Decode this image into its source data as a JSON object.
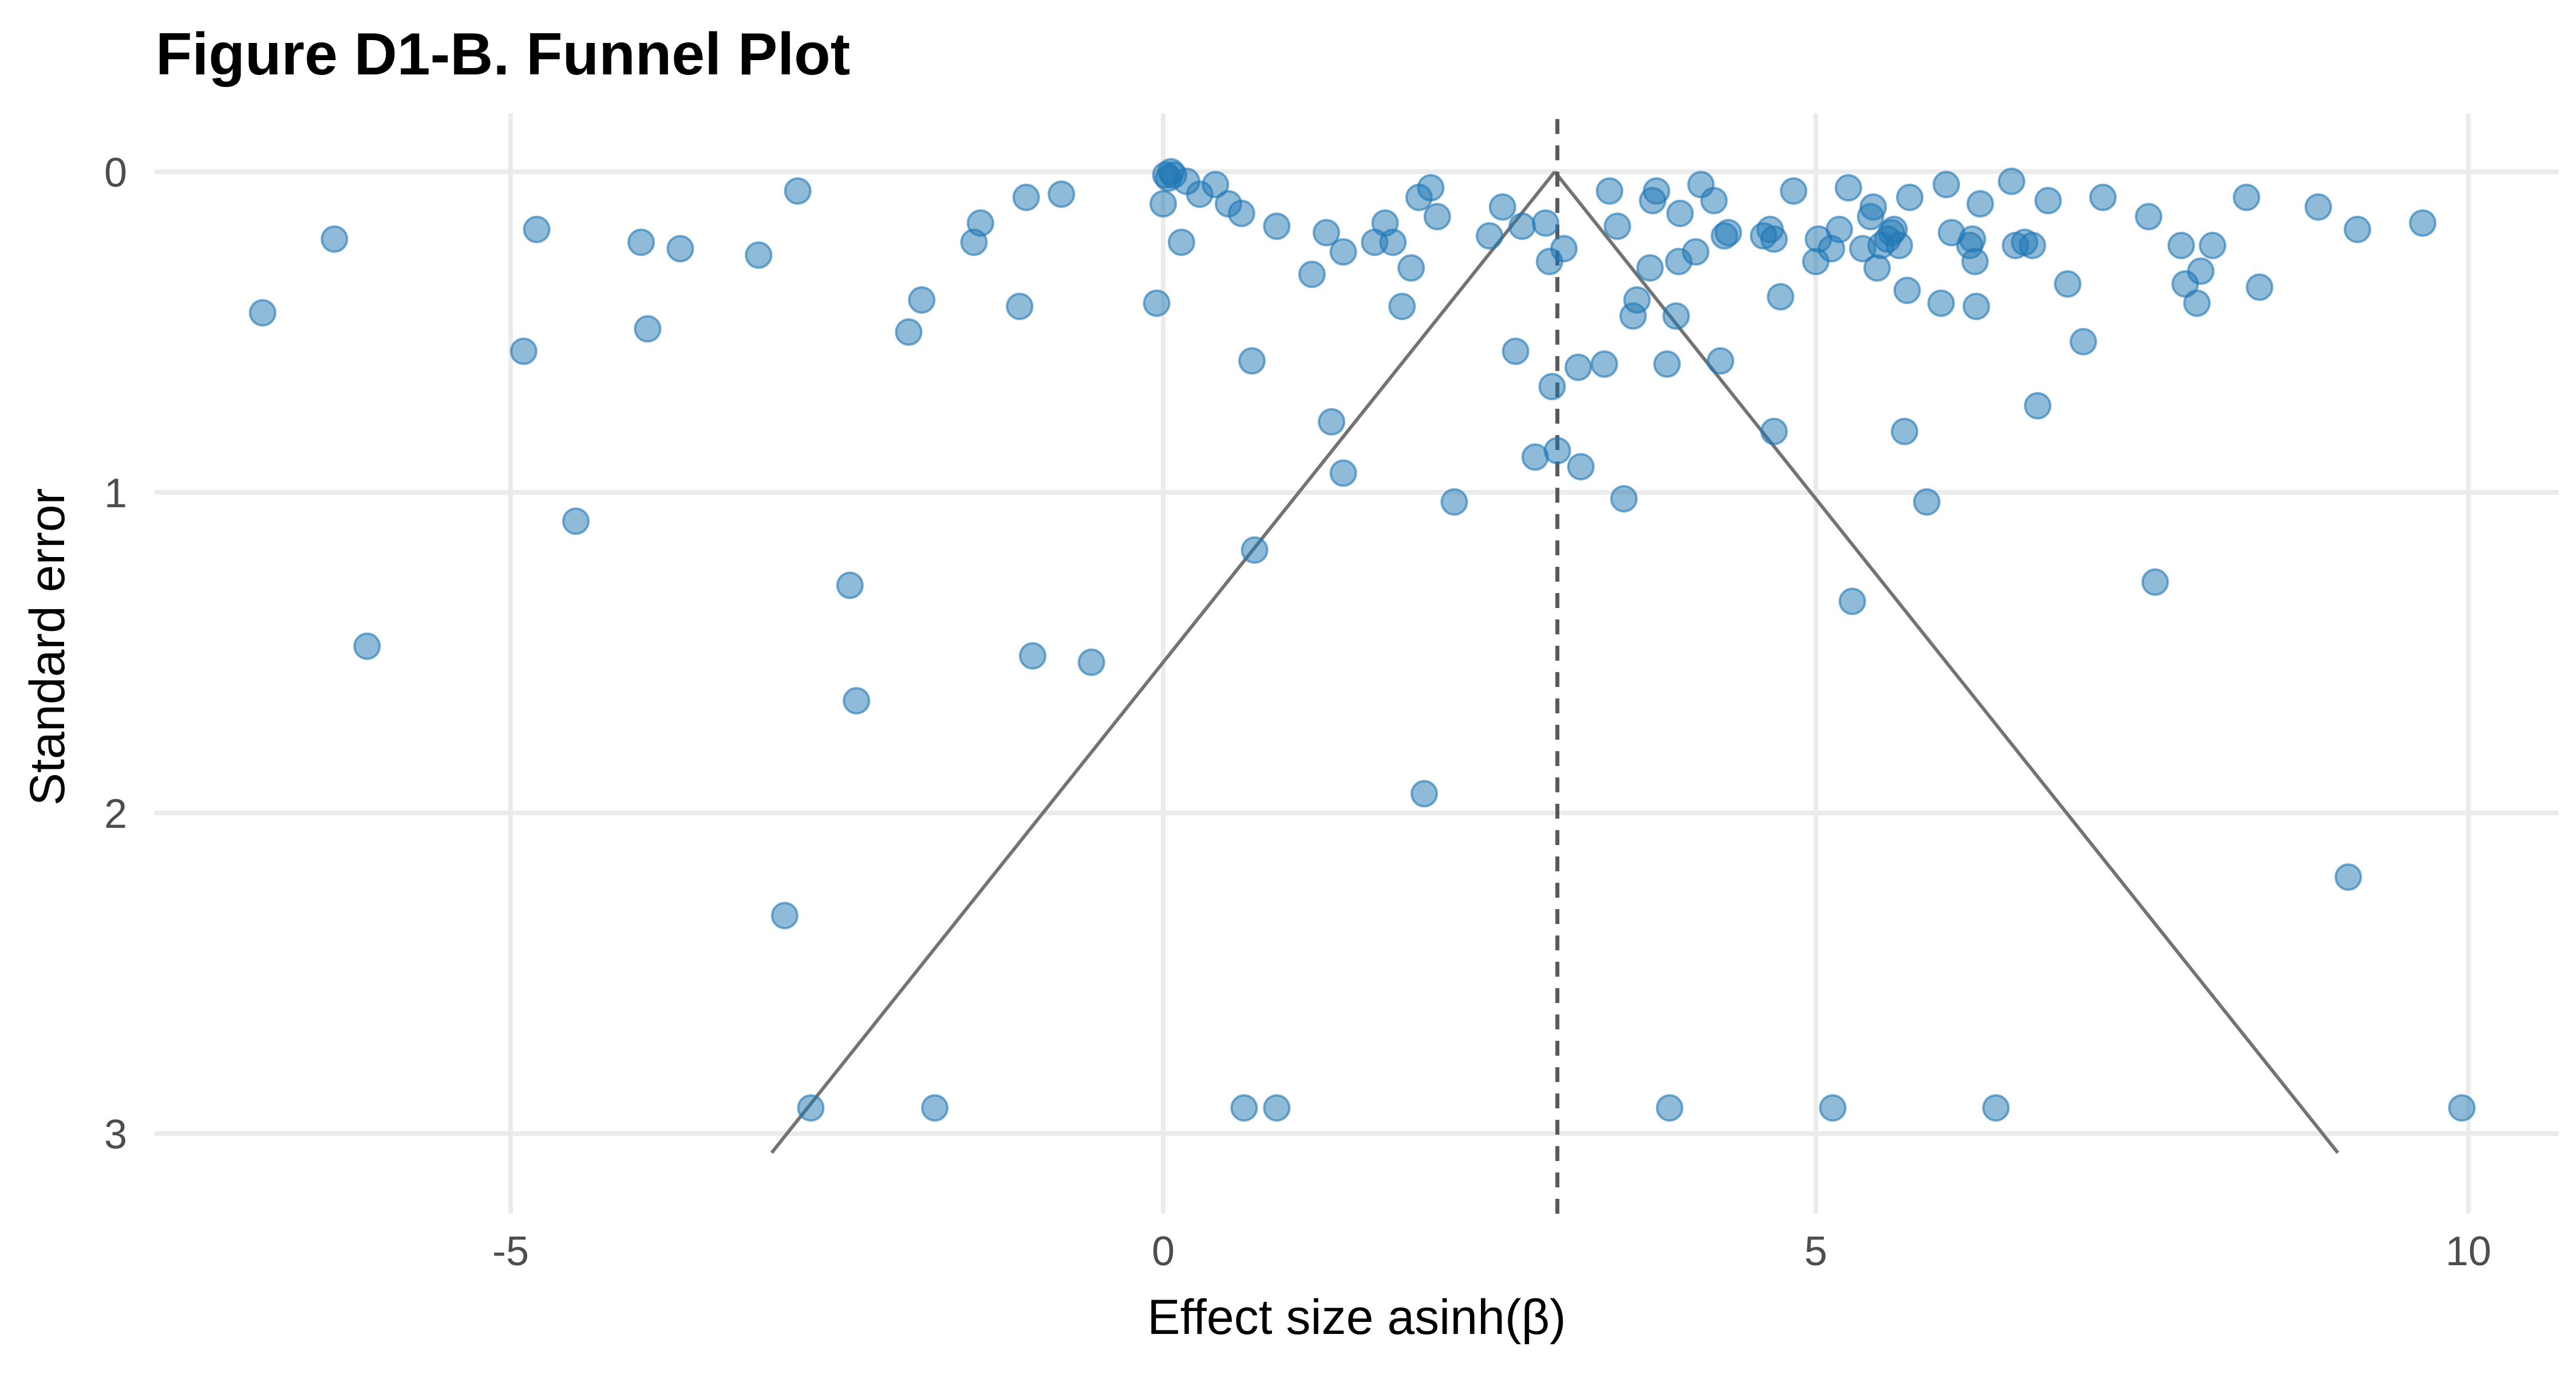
{
  "chart_data": {
    "type": "scatter",
    "title": "Figure D1-B. Funnel Plot",
    "xlabel": "Effect size asinh(β)",
    "ylabel": "Standard error",
    "xlim": [
      -7.5,
      10.5
    ],
    "ylim": [
      3.2,
      -0.1
    ],
    "y_reversed": true,
    "grid": true,
    "x_ticks": [
      -5,
      0,
      5,
      10
    ],
    "x_tick_labels": [
      "-5",
      "0",
      "5",
      "10"
    ],
    "y_ticks": [
      0,
      1,
      2,
      3
    ],
    "y_tick_labels": [
      "0",
      "1",
      "2",
      "3"
    ],
    "point_color": "#1f77b4",
    "line_color": "#737373",
    "mean_effect": 3.02,
    "funnel": {
      "apex": [
        3.0,
        0.0
      ],
      "left_end": [
        -3.0,
        3.06
      ],
      "right_end": [
        9.0,
        3.06
      ]
    },
    "points": [
      {
        "x": -6.9,
        "y": 0.44
      },
      {
        "x": -6.35,
        "y": 0.21
      },
      {
        "x": -6.1,
        "y": 1.48
      },
      {
        "x": -4.9,
        "y": 0.56
      },
      {
        "x": -4.8,
        "y": 0.18
      },
      {
        "x": -4.5,
        "y": 1.09
      },
      {
        "x": -4.0,
        "y": 0.22
      },
      {
        "x": -3.95,
        "y": 0.49
      },
      {
        "x": -3.7,
        "y": 0.24
      },
      {
        "x": -3.1,
        "y": 0.26
      },
      {
        "x": -2.9,
        "y": 2.32
      },
      {
        "x": -2.8,
        "y": 0.06
      },
      {
        "x": -2.7,
        "y": 2.92
      },
      {
        "x": -2.4,
        "y": 1.29
      },
      {
        "x": -2.35,
        "y": 1.65
      },
      {
        "x": -1.95,
        "y": 0.5
      },
      {
        "x": -1.85,
        "y": 0.4
      },
      {
        "x": -1.75,
        "y": 2.92
      },
      {
        "x": -1.45,
        "y": 0.22
      },
      {
        "x": -1.4,
        "y": 0.16
      },
      {
        "x": -1.1,
        "y": 0.42
      },
      {
        "x": -1.05,
        "y": 0.08
      },
      {
        "x": -1.0,
        "y": 1.51
      },
      {
        "x": -0.55,
        "y": 1.53
      },
      {
        "x": -0.78,
        "y": 0.07
      },
      {
        "x": -0.05,
        "y": 0.41
      },
      {
        "x": 0.0,
        "y": 0.1
      },
      {
        "x": 0.02,
        "y": 0.01
      },
      {
        "x": 0.04,
        "y": 0.02
      },
      {
        "x": 0.06,
        "y": 0.0
      },
      {
        "x": 0.08,
        "y": 0.01
      },
      {
        "x": 0.14,
        "y": 0.22
      },
      {
        "x": 0.18,
        "y": 0.03
      },
      {
        "x": 0.28,
        "y": 0.07
      },
      {
        "x": 0.4,
        "y": 0.04
      },
      {
        "x": 0.5,
        "y": 0.1
      },
      {
        "x": 0.6,
        "y": 0.13
      },
      {
        "x": 0.62,
        "y": 2.92
      },
      {
        "x": 0.68,
        "y": 0.59
      },
      {
        "x": 0.7,
        "y": 1.18
      },
      {
        "x": 0.87,
        "y": 0.17
      },
      {
        "x": 0.87,
        "y": 2.92
      },
      {
        "x": 1.14,
        "y": 0.32
      },
      {
        "x": 1.25,
        "y": 0.19
      },
      {
        "x": 1.29,
        "y": 0.78
      },
      {
        "x": 1.38,
        "y": 0.94
      },
      {
        "x": 1.38,
        "y": 0.25
      },
      {
        "x": 1.62,
        "y": 0.22
      },
      {
        "x": 1.7,
        "y": 0.16
      },
      {
        "x": 1.76,
        "y": 0.22
      },
      {
        "x": 1.83,
        "y": 0.42
      },
      {
        "x": 1.9,
        "y": 0.3
      },
      {
        "x": 1.96,
        "y": 0.08
      },
      {
        "x": 2.0,
        "y": 1.94
      },
      {
        "x": 2.05,
        "y": 0.05
      },
      {
        "x": 2.1,
        "y": 0.14
      },
      {
        "x": 2.23,
        "y": 1.03
      },
      {
        "x": 2.5,
        "y": 0.2
      },
      {
        "x": 2.6,
        "y": 0.11
      },
      {
        "x": 2.7,
        "y": 0.56
      },
      {
        "x": 2.75,
        "y": 0.17
      },
      {
        "x": 2.85,
        "y": 0.89
      },
      {
        "x": 2.93,
        "y": 0.16
      },
      {
        "x": 2.96,
        "y": 0.28
      },
      {
        "x": 2.98,
        "y": 0.67
      },
      {
        "x": 3.02,
        "y": 0.87
      },
      {
        "x": 3.07,
        "y": 0.24
      },
      {
        "x": 3.18,
        "y": 0.61
      },
      {
        "x": 3.2,
        "y": 0.92
      },
      {
        "x": 3.38,
        "y": 0.6
      },
      {
        "x": 3.42,
        "y": 0.06
      },
      {
        "x": 3.48,
        "y": 0.17
      },
      {
        "x": 3.53,
        "y": 1.02
      },
      {
        "x": 3.6,
        "y": 0.45
      },
      {
        "x": 3.63,
        "y": 0.4
      },
      {
        "x": 3.73,
        "y": 0.3
      },
      {
        "x": 3.75,
        "y": 0.09
      },
      {
        "x": 3.78,
        "y": 0.06
      },
      {
        "x": 3.86,
        "y": 0.6
      },
      {
        "x": 3.88,
        "y": 2.92
      },
      {
        "x": 3.93,
        "y": 0.45
      },
      {
        "x": 3.95,
        "y": 0.28
      },
      {
        "x": 3.96,
        "y": 0.13
      },
      {
        "x": 4.08,
        "y": 0.25
      },
      {
        "x": 4.12,
        "y": 0.04
      },
      {
        "x": 4.22,
        "y": 0.09
      },
      {
        "x": 4.27,
        "y": 0.59
      },
      {
        "x": 4.3,
        "y": 0.2
      },
      {
        "x": 4.33,
        "y": 0.19
      },
      {
        "x": 4.6,
        "y": 0.2
      },
      {
        "x": 4.65,
        "y": 0.18
      },
      {
        "x": 4.68,
        "y": 0.21
      },
      {
        "x": 4.68,
        "y": 0.81
      },
      {
        "x": 4.73,
        "y": 0.39
      },
      {
        "x": 4.83,
        "y": 0.06
      },
      {
        "x": 5.0,
        "y": 0.28
      },
      {
        "x": 5.02,
        "y": 0.21
      },
      {
        "x": 5.12,
        "y": 0.24
      },
      {
        "x": 5.13,
        "y": 2.92
      },
      {
        "x": 5.18,
        "y": 0.18
      },
      {
        "x": 5.25,
        "y": 0.05
      },
      {
        "x": 5.28,
        "y": 1.34
      },
      {
        "x": 5.36,
        "y": 0.24
      },
      {
        "x": 5.42,
        "y": 0.14
      },
      {
        "x": 5.44,
        "y": 0.11
      },
      {
        "x": 5.47,
        "y": 0.3
      },
      {
        "x": 5.5,
        "y": 0.23
      },
      {
        "x": 5.55,
        "y": 0.21
      },
      {
        "x": 5.58,
        "y": 0.19
      },
      {
        "x": 5.6,
        "y": 0.18
      },
      {
        "x": 5.64,
        "y": 0.23
      },
      {
        "x": 5.68,
        "y": 0.81
      },
      {
        "x": 5.7,
        "y": 0.37
      },
      {
        "x": 5.72,
        "y": 0.08
      },
      {
        "x": 5.85,
        "y": 1.03
      },
      {
        "x": 5.96,
        "y": 0.41
      },
      {
        "x": 6.0,
        "y": 0.04
      },
      {
        "x": 6.04,
        "y": 0.19
      },
      {
        "x": 6.18,
        "y": 0.23
      },
      {
        "x": 6.2,
        "y": 0.21
      },
      {
        "x": 6.22,
        "y": 0.28
      },
      {
        "x": 6.23,
        "y": 0.42
      },
      {
        "x": 6.26,
        "y": 0.1
      },
      {
        "x": 6.38,
        "y": 2.92
      },
      {
        "x": 6.5,
        "y": 0.03
      },
      {
        "x": 6.53,
        "y": 0.23
      },
      {
        "x": 6.6,
        "y": 0.22
      },
      {
        "x": 6.66,
        "y": 0.23
      },
      {
        "x": 6.7,
        "y": 0.73
      },
      {
        "x": 6.78,
        "y": 0.09
      },
      {
        "x": 6.93,
        "y": 0.35
      },
      {
        "x": 7.05,
        "y": 0.53
      },
      {
        "x": 7.2,
        "y": 0.08
      },
      {
        "x": 7.55,
        "y": 0.14
      },
      {
        "x": 7.6,
        "y": 1.28
      },
      {
        "x": 7.8,
        "y": 0.23
      },
      {
        "x": 7.83,
        "y": 0.35
      },
      {
        "x": 7.92,
        "y": 0.41
      },
      {
        "x": 7.95,
        "y": 0.31
      },
      {
        "x": 8.04,
        "y": 0.23
      },
      {
        "x": 8.3,
        "y": 0.08
      },
      {
        "x": 8.4,
        "y": 0.36
      },
      {
        "x": 8.85,
        "y": 0.11
      },
      {
        "x": 9.08,
        "y": 2.2
      },
      {
        "x": 9.15,
        "y": 0.18
      },
      {
        "x": 9.65,
        "y": 0.16
      },
      {
        "x": 9.95,
        "y": 2.92
      }
    ]
  }
}
